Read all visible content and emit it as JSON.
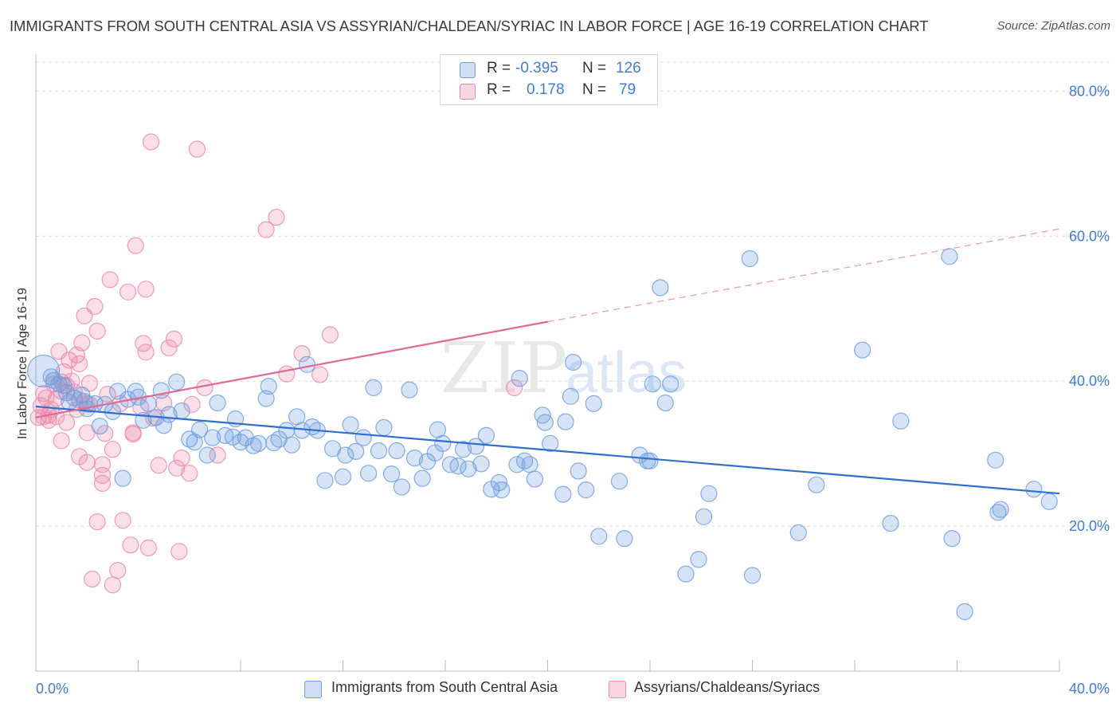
{
  "header": {
    "title": "IMMIGRANTS FROM SOUTH CENTRAL ASIA VS ASSYRIAN/CHALDEAN/SYRIAC IN LABOR FORCE | AGE 16-19 CORRELATION CHART",
    "source": "Source: ZipAtlas.com"
  },
  "watermark": "ZIPatlas",
  "legend": {
    "rows": [
      {
        "r_label": "R =",
        "r_value": "-0.395",
        "n_label": "N =",
        "n_value": "126",
        "color": "#6f9fe0"
      },
      {
        "r_label": "R =",
        "r_value": "0.178",
        "n_label": "N =",
        "n_value": "79",
        "color": "#ec8aab"
      }
    ]
  },
  "bottom_legend": [
    {
      "label": "Immigrants from South Central Asia",
      "color": "#6f9fe0"
    },
    {
      "label": "Assyrians/Chaldeans/Syriacs",
      "color": "#ec8aab"
    }
  ],
  "chart_data": {
    "type": "scatter",
    "title": "IMMIGRANTS FROM SOUTH CENTRAL ASIA VS ASSYRIAN/CHALDEAN/SYRIAC IN LABOR FORCE | AGE 16-19 CORRELATION CHART",
    "xlabel": "",
    "ylabel": "In Labor Force | Age 16-19",
    "xlim": [
      0,
      40
    ],
    "ylim": [
      0,
      84
    ],
    "x_tick_labels": [
      "0.0%",
      "40.0%"
    ],
    "y_ticks": [
      20,
      40,
      60,
      80
    ],
    "y_tick_labels": [
      "20.0%",
      "40.0%",
      "60.0%",
      "80.0%"
    ],
    "grid": true,
    "legend_position": "top-center",
    "colors": {
      "blue": "#6f9fe0",
      "pink": "#ec8aab",
      "blue_line": "#2f6fd0",
      "pink_line": "#e06a94"
    },
    "series": [
      {
        "name": "Immigrants from South Central Asia",
        "color": "blue",
        "r": -0.395,
        "n": 126,
        "trend": {
          "x0": 0,
          "y0": 36.5,
          "x1": 40,
          "y1": 24.5
        },
        "points": [
          [
            0.3,
            41.4
          ],
          [
            0.6,
            40.6
          ],
          [
            0.7,
            40.1
          ],
          [
            0.9,
            39.6
          ],
          [
            1.1,
            39.4
          ],
          [
            1.2,
            38.4
          ],
          [
            1.3,
            37.1
          ],
          [
            1.5,
            37.7
          ],
          [
            1.8,
            38.1
          ],
          [
            1.9,
            37.2
          ],
          [
            2.0,
            36.2
          ],
          [
            2.3,
            36.9
          ],
          [
            2.5,
            33.8
          ],
          [
            2.7,
            36.8
          ],
          [
            3.0,
            35.8
          ],
          [
            3.2,
            38.6
          ],
          [
            3.4,
            26.6
          ],
          [
            3.6,
            37.5
          ],
          [
            3.9,
            38.6
          ],
          [
            4.0,
            37.8
          ],
          [
            4.2,
            34.6
          ],
          [
            4.4,
            36.9
          ],
          [
            4.7,
            35.0
          ],
          [
            4.9,
            38.7
          ],
          [
            5.0,
            33.9
          ],
          [
            5.2,
            35.4
          ],
          [
            5.5,
            39.9
          ],
          [
            5.7,
            35.9
          ],
          [
            6.0,
            32.0
          ],
          [
            6.2,
            31.6
          ],
          [
            6.4,
            33.3
          ],
          [
            6.7,
            29.8
          ],
          [
            6.9,
            32.2
          ],
          [
            7.1,
            37.0
          ],
          [
            7.4,
            32.5
          ],
          [
            7.7,
            32.3
          ],
          [
            7.8,
            34.8
          ],
          [
            8.0,
            31.6
          ],
          [
            8.2,
            32.2
          ],
          [
            8.5,
            31.1
          ],
          [
            8.7,
            31.4
          ],
          [
            9.0,
            37.6
          ],
          [
            9.1,
            39.3
          ],
          [
            9.3,
            31.5
          ],
          [
            9.5,
            32.0
          ],
          [
            9.8,
            33.2
          ],
          [
            10.0,
            31.2
          ],
          [
            10.2,
            35.1
          ],
          [
            10.4,
            33.2
          ],
          [
            10.6,
            42.3
          ],
          [
            10.8,
            33.7
          ],
          [
            11.0,
            33.2
          ],
          [
            11.3,
            26.3
          ],
          [
            11.6,
            30.7
          ],
          [
            12.0,
            26.8
          ],
          [
            12.1,
            29.8
          ],
          [
            12.3,
            34.0
          ],
          [
            12.5,
            30.3
          ],
          [
            12.8,
            32.2
          ],
          [
            13.0,
            27.3
          ],
          [
            13.2,
            39.1
          ],
          [
            13.4,
            30.4
          ],
          [
            13.6,
            33.6
          ],
          [
            13.9,
            27.2
          ],
          [
            14.1,
            30.4
          ],
          [
            14.3,
            25.4
          ],
          [
            14.6,
            38.8
          ],
          [
            14.8,
            29.4
          ],
          [
            15.1,
            26.6
          ],
          [
            15.3,
            28.9
          ],
          [
            15.6,
            30.1
          ],
          [
            15.7,
            33.3
          ],
          [
            15.9,
            31.4
          ],
          [
            16.2,
            28.5
          ],
          [
            16.5,
            28.3
          ],
          [
            16.7,
            30.6
          ],
          [
            16.9,
            27.9
          ],
          [
            17.2,
            31.0
          ],
          [
            17.4,
            28.6
          ],
          [
            17.6,
            32.5
          ],
          [
            17.8,
            25.1
          ],
          [
            18.1,
            26.0
          ],
          [
            18.2,
            25.0
          ],
          [
            18.8,
            28.5
          ],
          [
            18.9,
            40.4
          ],
          [
            19.1,
            29.0
          ],
          [
            19.3,
            28.5
          ],
          [
            19.5,
            26.5
          ],
          [
            19.8,
            35.3
          ],
          [
            19.9,
            34.3
          ],
          [
            20.1,
            31.4
          ],
          [
            20.6,
            24.4
          ],
          [
            20.7,
            34.4
          ],
          [
            20.9,
            37.9
          ],
          [
            21.0,
            42.6
          ],
          [
            21.2,
            27.6
          ],
          [
            21.5,
            25.0
          ],
          [
            21.8,
            36.9
          ],
          [
            22.0,
            18.6
          ],
          [
            22.8,
            26.2
          ],
          [
            23.0,
            18.3
          ],
          [
            23.6,
            29.8
          ],
          [
            23.9,
            29.0
          ],
          [
            24.0,
            29.0
          ],
          [
            24.1,
            39.6
          ],
          [
            24.4,
            52.9
          ],
          [
            24.6,
            37.0
          ],
          [
            24.8,
            39.6
          ],
          [
            25.4,
            13.4
          ],
          [
            25.9,
            15.4
          ],
          [
            26.1,
            21.3
          ],
          [
            26.3,
            24.5
          ],
          [
            27.9,
            56.9
          ],
          [
            28.0,
            13.2
          ],
          [
            29.8,
            19.1
          ],
          [
            30.5,
            25.7
          ],
          [
            32.3,
            44.3
          ],
          [
            33.4,
            20.4
          ],
          [
            33.8,
            34.5
          ],
          [
            35.7,
            57.2
          ],
          [
            35.8,
            18.3
          ],
          [
            36.3,
            8.2
          ],
          [
            37.5,
            29.1
          ],
          [
            37.6,
            21.9
          ],
          [
            37.7,
            22.3
          ],
          [
            39.0,
            25.1
          ],
          [
            39.6,
            23.4
          ]
        ]
      },
      {
        "name": "Assyrians/Chaldeans/Syriacs",
        "color": "pink",
        "r": 0.178,
        "n": 79,
        "trend": {
          "x0": 0,
          "y0": 35.0,
          "x1": 20,
          "y1": 48.2
        },
        "trend_ext": {
          "x0": 20,
          "y0": 48.2,
          "x1": 40,
          "y1": 61.0
        },
        "points": [
          [
            0.1,
            35.0
          ],
          [
            0.2,
            36.6
          ],
          [
            0.3,
            35.1
          ],
          [
            0.3,
            38.3
          ],
          [
            0.4,
            37.7
          ],
          [
            0.5,
            35.3
          ],
          [
            0.5,
            34.6
          ],
          [
            0.6,
            36.1
          ],
          [
            0.7,
            39.6
          ],
          [
            0.8,
            37.6
          ],
          [
            0.8,
            35.1
          ],
          [
            0.9,
            44.1
          ],
          [
            1.0,
            38.6
          ],
          [
            1.0,
            39.9
          ],
          [
            1.0,
            31.8
          ],
          [
            1.1,
            41.3
          ],
          [
            1.2,
            34.3
          ],
          [
            1.2,
            39.4
          ],
          [
            1.3,
            42.9
          ],
          [
            1.4,
            40.0
          ],
          [
            1.5,
            38.5
          ],
          [
            1.6,
            43.6
          ],
          [
            1.6,
            36.1
          ],
          [
            1.7,
            29.6
          ],
          [
            1.7,
            42.4
          ],
          [
            1.7,
            37.4
          ],
          [
            1.8,
            45.3
          ],
          [
            1.9,
            49.0
          ],
          [
            2.0,
            32.9
          ],
          [
            2.0,
            28.8
          ],
          [
            2.0,
            36.9
          ],
          [
            2.1,
            39.7
          ],
          [
            2.1,
            36.8
          ],
          [
            2.2,
            12.7
          ],
          [
            2.3,
            50.3
          ],
          [
            2.4,
            46.9
          ],
          [
            2.4,
            20.6
          ],
          [
            2.6,
            27.0
          ],
          [
            2.6,
            25.9
          ],
          [
            2.6,
            28.5
          ],
          [
            2.7,
            32.8
          ],
          [
            2.8,
            38.2
          ],
          [
            2.9,
            54.0
          ],
          [
            3.0,
            11.9
          ],
          [
            3.0,
            30.6
          ],
          [
            3.2,
            13.9
          ],
          [
            3.3,
            36.9
          ],
          [
            3.4,
            20.8
          ],
          [
            3.6,
            52.3
          ],
          [
            3.7,
            17.4
          ],
          [
            3.8,
            32.7
          ],
          [
            3.8,
            32.9
          ],
          [
            3.9,
            58.7
          ],
          [
            4.1,
            36.4
          ],
          [
            4.2,
            45.2
          ],
          [
            4.3,
            52.7
          ],
          [
            4.3,
            44.0
          ],
          [
            4.4,
            17.0
          ],
          [
            4.5,
            73.0
          ],
          [
            4.6,
            34.9
          ],
          [
            4.8,
            28.4
          ],
          [
            5.0,
            37.0
          ],
          [
            5.2,
            44.6
          ],
          [
            5.4,
            45.8
          ],
          [
            5.5,
            28.0
          ],
          [
            5.6,
            16.5
          ],
          [
            5.7,
            29.4
          ],
          [
            6.0,
            27.3
          ],
          [
            6.1,
            36.8
          ],
          [
            6.3,
            72.0
          ],
          [
            6.6,
            39.1
          ],
          [
            7.1,
            29.8
          ],
          [
            9.0,
            60.9
          ],
          [
            9.4,
            62.6
          ],
          [
            9.8,
            41.0
          ],
          [
            10.4,
            43.8
          ],
          [
            11.1,
            40.9
          ],
          [
            11.5,
            46.4
          ],
          [
            18.7,
            39.1
          ]
        ]
      }
    ]
  }
}
